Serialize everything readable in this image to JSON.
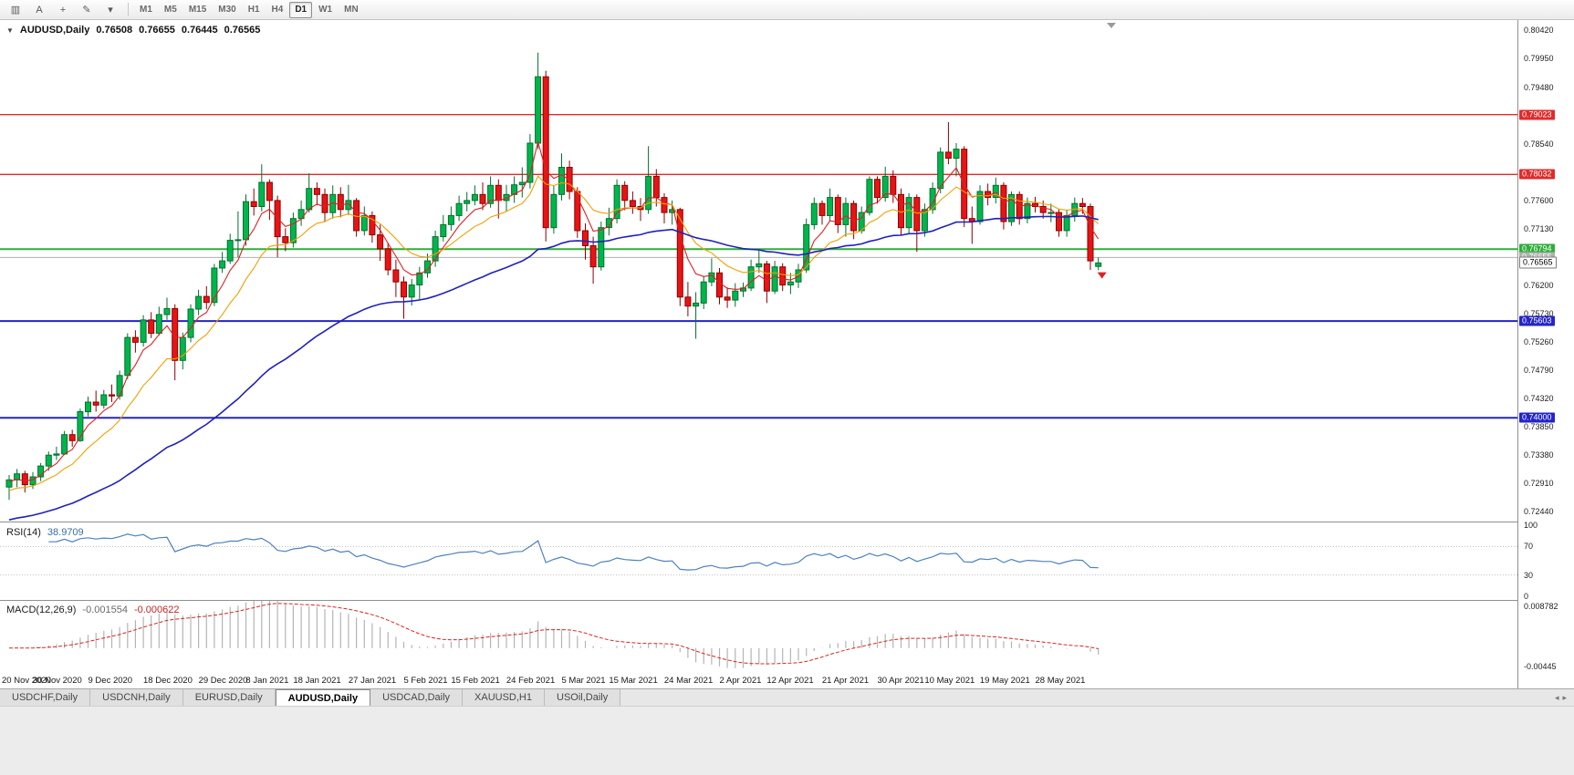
{
  "toolbar": {
    "icon_buttons": [
      {
        "name": "chart-window-icon",
        "glyph": "▥"
      },
      {
        "name": "cursor-icon",
        "glyph": "A"
      },
      {
        "name": "crosshair-icon",
        "glyph": "+"
      },
      {
        "name": "draw-tools-icon",
        "glyph": "✎"
      },
      {
        "name": "dropdown-arrow-icon",
        "glyph": "▾"
      }
    ],
    "timeframes": [
      "M1",
      "M5",
      "M15",
      "M30",
      "H1",
      "H4",
      "D1",
      "W1",
      "MN"
    ],
    "active_timeframe": "D1"
  },
  "main_chart": {
    "header": {
      "symbol": "AUDUSD,Daily",
      "open": "0.76508",
      "high": "0.76655",
      "low": "0.76445",
      "close": "0.76565"
    },
    "y_ticks": [
      "0.80420",
      "0.79950",
      "0.79480",
      "0.78540",
      "0.77600",
      "0.77130",
      "0.76200",
      "0.75730",
      "0.75260",
      "0.74790",
      "0.74320",
      "0.73850",
      "0.73380",
      "0.72910",
      "0.72440"
    ],
    "levels": [
      {
        "price": 0.79023,
        "label": "0.79023",
        "color": "#e02b2b",
        "width": 1.4
      },
      {
        "price": 0.78032,
        "label": "0.78032",
        "color": "#e02b2b",
        "width": 1.4
      },
      {
        "price": 0.76794,
        "label": "0.76794",
        "color": "#2fae3a",
        "width": 2
      },
      {
        "price": 0.76655,
        "label": "0.76655",
        "color": "#b0b0b0",
        "width": 1
      },
      {
        "price": 0.75603,
        "label": "0.75603",
        "color": "#2424c8",
        "width": 2
      },
      {
        "price": 0.74,
        "label": "0.74000",
        "color": "#2424c8",
        "width": 2
      }
    ],
    "current_price": {
      "label": "0.76565",
      "price": 0.76565
    },
    "arrow_marker": {
      "index": 138,
      "price": 0.7641,
      "color": "#e02020"
    }
  },
  "indicators": {
    "rsi": {
      "label": "RSI(14)",
      "value": "38.9709",
      "color": "#4f81bd",
      "levels": [
        70,
        30
      ],
      "axis": [
        "100",
        "70",
        "30",
        "0"
      ]
    },
    "macd": {
      "label": "MACD(12,26,9)",
      "values": [
        "-0.001554",
        "-0.000622"
      ],
      "axis_max": "0.008782",
      "axis_min": "-0.00445",
      "bar_color": "#b4b4b4",
      "signal_color": "#d92323"
    }
  },
  "tabs": {
    "items": [
      "USDCHF,Daily",
      "USDCNH,Daily",
      "EURUSD,Daily",
      "AUDUSD,Daily",
      "USDCAD,Daily",
      "XAUUSD,H1",
      "USOil,Daily"
    ],
    "active": "AUDUSD,Daily",
    "arrows": [
      "◂",
      "▸"
    ]
  },
  "chart_data": {
    "type": "candlestick",
    "symbol": "AUDUSD",
    "timeframe": "Daily",
    "price_axis": {
      "top": 0.8059,
      "bottom": 0.7228
    },
    "up_color": "#00b64c",
    "down_color": "#e81414",
    "candles": [
      [
        0.7285,
        0.7305,
        0.7264,
        0.7297
      ],
      [
        0.7297,
        0.7315,
        0.7285,
        0.7307
      ],
      [
        0.7307,
        0.7312,
        0.7276,
        0.7289
      ],
      [
        0.7289,
        0.731,
        0.7282,
        0.7302
      ],
      [
        0.7302,
        0.7325,
        0.7295,
        0.732
      ],
      [
        0.732,
        0.7344,
        0.7312,
        0.7338
      ],
      [
        0.7338,
        0.7352,
        0.733,
        0.734
      ],
      [
        0.734,
        0.7378,
        0.7338,
        0.7372
      ],
      [
        0.7372,
        0.738,
        0.7352,
        0.7362
      ],
      [
        0.7362,
        0.7415,
        0.736,
        0.741
      ],
      [
        0.741,
        0.7435,
        0.7402,
        0.7426
      ],
      [
        0.7426,
        0.7445,
        0.741,
        0.7421
      ],
      [
        0.7421,
        0.7446,
        0.7415,
        0.7438
      ],
      [
        0.7438,
        0.7455,
        0.7426,
        0.7436
      ],
      [
        0.7436,
        0.7478,
        0.743,
        0.747
      ],
      [
        0.747,
        0.754,
        0.7464,
        0.7533
      ],
      [
        0.7533,
        0.7545,
        0.7508,
        0.7525
      ],
      [
        0.7525,
        0.757,
        0.7518,
        0.7562
      ],
      [
        0.7562,
        0.7575,
        0.7532,
        0.754
      ],
      [
        0.754,
        0.7584,
        0.7536,
        0.7571
      ],
      [
        0.7571,
        0.7599,
        0.7562,
        0.7581
      ],
      [
        0.7581,
        0.7588,
        0.7462,
        0.7495
      ],
      [
        0.7495,
        0.7541,
        0.748,
        0.7533
      ],
      [
        0.7533,
        0.7588,
        0.7525,
        0.758
      ],
      [
        0.758,
        0.7612,
        0.757,
        0.7601
      ],
      [
        0.7601,
        0.7618,
        0.758,
        0.7591
      ],
      [
        0.7591,
        0.7655,
        0.7585,
        0.7648
      ],
      [
        0.7648,
        0.7675,
        0.764,
        0.766
      ],
      [
        0.766,
        0.7705,
        0.7655,
        0.7694
      ],
      [
        0.7694,
        0.7742,
        0.7666,
        0.7695
      ],
      [
        0.7695,
        0.777,
        0.7685,
        0.7758
      ],
      [
        0.7758,
        0.778,
        0.7735,
        0.775
      ],
      [
        0.775,
        0.782,
        0.7742,
        0.779
      ],
      [
        0.779,
        0.7795,
        0.7728,
        0.776
      ],
      [
        0.776,
        0.7768,
        0.7666,
        0.77
      ],
      [
        0.77,
        0.7714,
        0.7676,
        0.769
      ],
      [
        0.769,
        0.774,
        0.7682,
        0.773
      ],
      [
        0.773,
        0.776,
        0.7718,
        0.7745
      ],
      [
        0.7745,
        0.7805,
        0.774,
        0.778
      ],
      [
        0.778,
        0.779,
        0.7752,
        0.777
      ],
      [
        0.777,
        0.778,
        0.7725,
        0.774
      ],
      [
        0.774,
        0.7785,
        0.773,
        0.777
      ],
      [
        0.777,
        0.7782,
        0.7732,
        0.7745
      ],
      [
        0.7745,
        0.7786,
        0.7736,
        0.776
      ],
      [
        0.776,
        0.7764,
        0.77,
        0.771
      ],
      [
        0.771,
        0.775,
        0.7702,
        0.7735
      ],
      [
        0.7735,
        0.7742,
        0.769,
        0.7703
      ],
      [
        0.7703,
        0.772,
        0.766,
        0.768
      ],
      [
        0.768,
        0.769,
        0.7636,
        0.7645
      ],
      [
        0.7645,
        0.7662,
        0.76,
        0.7625
      ],
      [
        0.7625,
        0.7634,
        0.7564,
        0.76
      ],
      [
        0.76,
        0.763,
        0.7586,
        0.762
      ],
      [
        0.762,
        0.765,
        0.7596,
        0.764
      ],
      [
        0.764,
        0.7672,
        0.7632,
        0.766
      ],
      [
        0.766,
        0.771,
        0.765,
        0.77
      ],
      [
        0.77,
        0.7736,
        0.7692,
        0.772
      ],
      [
        0.772,
        0.775,
        0.771,
        0.7735
      ],
      [
        0.7735,
        0.7768,
        0.7726,
        0.7755
      ],
      [
        0.7755,
        0.7774,
        0.7742,
        0.776
      ],
      [
        0.776,
        0.7785,
        0.7752,
        0.777
      ],
      [
        0.777,
        0.779,
        0.7744,
        0.7755
      ],
      [
        0.7755,
        0.78,
        0.7748,
        0.7785
      ],
      [
        0.7785,
        0.7795,
        0.773,
        0.776
      ],
      [
        0.776,
        0.7786,
        0.7742,
        0.777
      ],
      [
        0.777,
        0.78,
        0.7756,
        0.7786
      ],
      [
        0.7786,
        0.7815,
        0.7765,
        0.779
      ],
      [
        0.779,
        0.787,
        0.778,
        0.7855
      ],
      [
        0.7855,
        0.8005,
        0.7845,
        0.7965
      ],
      [
        0.7965,
        0.7975,
        0.7692,
        0.7715
      ],
      [
        0.7715,
        0.7785,
        0.7705,
        0.777
      ],
      [
        0.777,
        0.7838,
        0.776,
        0.7815
      ],
      [
        0.7815,
        0.7826,
        0.7762,
        0.7775
      ],
      [
        0.7775,
        0.7782,
        0.7698,
        0.771
      ],
      [
        0.771,
        0.7722,
        0.7662,
        0.7685
      ],
      [
        0.7685,
        0.77,
        0.7622,
        0.765
      ],
      [
        0.765,
        0.7725,
        0.7644,
        0.7715
      ],
      [
        0.7715,
        0.7748,
        0.7702,
        0.773
      ],
      [
        0.773,
        0.7795,
        0.7722,
        0.7785
      ],
      [
        0.7785,
        0.7792,
        0.7744,
        0.776
      ],
      [
        0.776,
        0.7775,
        0.7738,
        0.775
      ],
      [
        0.775,
        0.7764,
        0.7726,
        0.7745
      ],
      [
        0.7745,
        0.785,
        0.7738,
        0.78
      ],
      [
        0.78,
        0.7812,
        0.775,
        0.7765
      ],
      [
        0.7765,
        0.7772,
        0.7722,
        0.774
      ],
      [
        0.774,
        0.776,
        0.772,
        0.7745
      ],
      [
        0.7745,
        0.7748,
        0.7585,
        0.76
      ],
      [
        0.76,
        0.7625,
        0.7568,
        0.7585
      ],
      [
        0.7585,
        0.7608,
        0.7531,
        0.759
      ],
      [
        0.759,
        0.7635,
        0.758,
        0.7625
      ],
      [
        0.7625,
        0.7664,
        0.7618,
        0.764
      ],
      [
        0.764,
        0.7648,
        0.7588,
        0.76
      ],
      [
        0.76,
        0.7616,
        0.7582,
        0.7595
      ],
      [
        0.7595,
        0.7623,
        0.7584,
        0.761
      ],
      [
        0.761,
        0.7624,
        0.76,
        0.7615
      ],
      [
        0.7615,
        0.7662,
        0.761,
        0.765
      ],
      [
        0.765,
        0.7677,
        0.764,
        0.7655
      ],
      [
        0.7655,
        0.766,
        0.759,
        0.761
      ],
      [
        0.761,
        0.766,
        0.7605,
        0.765
      ],
      [
        0.765,
        0.7656,
        0.761,
        0.762
      ],
      [
        0.762,
        0.764,
        0.7605,
        0.7625
      ],
      [
        0.7625,
        0.7655,
        0.7615,
        0.7645
      ],
      [
        0.7645,
        0.773,
        0.764,
        0.772
      ],
      [
        0.772,
        0.7765,
        0.7712,
        0.7755
      ],
      [
        0.7755,
        0.776,
        0.772,
        0.7735
      ],
      [
        0.7735,
        0.778,
        0.7725,
        0.7765
      ],
      [
        0.7765,
        0.777,
        0.7706,
        0.772
      ],
      [
        0.772,
        0.7765,
        0.77,
        0.7755
      ],
      [
        0.7755,
        0.776,
        0.7696,
        0.771
      ],
      [
        0.771,
        0.775,
        0.7705,
        0.774
      ],
      [
        0.774,
        0.78,
        0.7735,
        0.7795
      ],
      [
        0.7795,
        0.78,
        0.7755,
        0.7765
      ],
      [
        0.7765,
        0.7816,
        0.7758,
        0.78
      ],
      [
        0.78,
        0.781,
        0.7756,
        0.777
      ],
      [
        0.777,
        0.778,
        0.7702,
        0.7715
      ],
      [
        0.7715,
        0.7772,
        0.7706,
        0.7765
      ],
      [
        0.7765,
        0.777,
        0.7675,
        0.771
      ],
      [
        0.771,
        0.7755,
        0.77,
        0.7745
      ],
      [
        0.7745,
        0.779,
        0.7738,
        0.778
      ],
      [
        0.778,
        0.7848,
        0.7772,
        0.784
      ],
      [
        0.784,
        0.789,
        0.782,
        0.783
      ],
      [
        0.783,
        0.7855,
        0.78,
        0.7845
      ],
      [
        0.7845,
        0.785,
        0.7716,
        0.773
      ],
      [
        0.773,
        0.775,
        0.7688,
        0.7725
      ],
      [
        0.7725,
        0.7785,
        0.772,
        0.7775
      ],
      [
        0.7775,
        0.7788,
        0.7752,
        0.7765
      ],
      [
        0.7765,
        0.7798,
        0.7755,
        0.7785
      ],
      [
        0.7785,
        0.779,
        0.7712,
        0.7725
      ],
      [
        0.7725,
        0.7775,
        0.7718,
        0.777
      ],
      [
        0.777,
        0.7775,
        0.772,
        0.773
      ],
      [
        0.773,
        0.7765,
        0.7722,
        0.7755
      ],
      [
        0.7755,
        0.7766,
        0.774,
        0.775
      ],
      [
        0.775,
        0.776,
        0.773,
        0.774
      ],
      [
        0.774,
        0.7755,
        0.7724,
        0.774
      ],
      [
        0.774,
        0.7745,
        0.77,
        0.771
      ],
      [
        0.771,
        0.7744,
        0.77,
        0.7735
      ],
      [
        0.7735,
        0.7765,
        0.7725,
        0.7755
      ],
      [
        0.7755,
        0.7764,
        0.7738,
        0.775
      ],
      [
        0.775,
        0.7755,
        0.7645,
        0.766
      ],
      [
        0.76508,
        0.76655,
        0.76445,
        0.76565
      ]
    ],
    "x_labels": [
      {
        "i": 0,
        "label": "20 Nov 2020"
      },
      {
        "i": 6,
        "label": "30 Nov 2020"
      },
      {
        "i": 13,
        "label": "9 Dec 2020"
      },
      {
        "i": 20,
        "label": "18 Dec 2020"
      },
      {
        "i": 27,
        "label": "29 Dec 2020"
      },
      {
        "i": 33,
        "label": "8 Jan 2021"
      },
      {
        "i": 39,
        "label": "18 Jan 2021"
      },
      {
        "i": 46,
        "label": "27 Jan 2021"
      },
      {
        "i": 53,
        "label": "5 Feb 2021"
      },
      {
        "i": 59,
        "label": "15 Feb 2021"
      },
      {
        "i": 66,
        "label": "24 Feb 2021"
      },
      {
        "i": 73,
        "label": "5 Mar 2021"
      },
      {
        "i": 79,
        "label": "15 Mar 2021"
      },
      {
        "i": 86,
        "label": "24 Mar 2021"
      },
      {
        "i": 93,
        "label": "2 Apr 2021"
      },
      {
        "i": 99,
        "label": "12 Apr 2021"
      },
      {
        "i": 106,
        "label": "21 Apr 2021"
      },
      {
        "i": 113,
        "label": "30 Apr 2021"
      },
      {
        "i": 119,
        "label": "10 May 2021"
      },
      {
        "i": 126,
        "label": "19 May 2021"
      },
      {
        "i": 133,
        "label": "28 May 2021"
      }
    ],
    "moving_averages": [
      {
        "period": 5,
        "seed": 0.7292,
        "color": "#e02020",
        "width": 1.1
      },
      {
        "period": 12,
        "seed": 0.7276,
        "color": "#f0a000",
        "width": 1.1
      },
      {
        "period": 50,
        "seed": 0.7228,
        "color": "#2121bb",
        "width": 1.6
      }
    ]
  }
}
